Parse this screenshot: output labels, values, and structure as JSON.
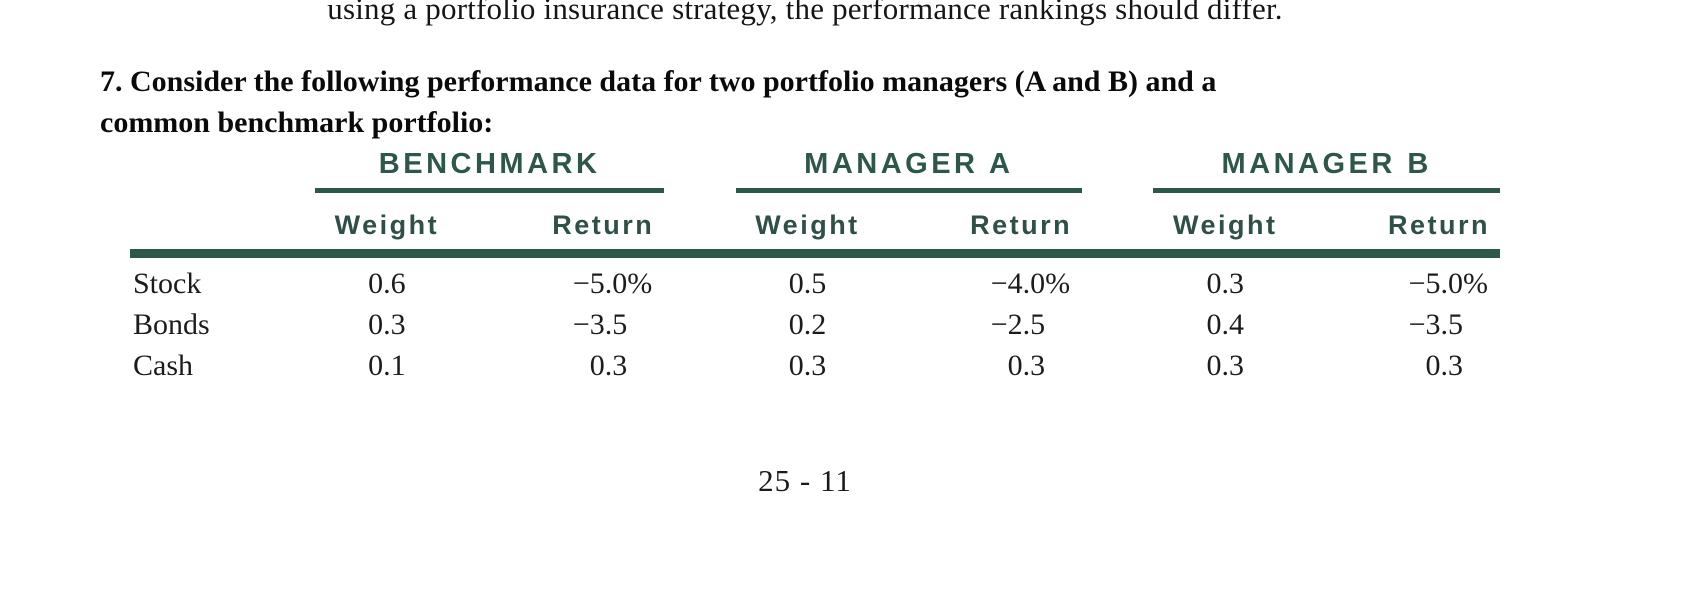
{
  "page": {
    "truncated_line": "using a portfolio insurance strategy, the performance rankings should differ.",
    "question_line1": "7. Consider the following performance data for two portfolio managers (A and B) and a",
    "question_line2": "common benchmark portfolio:",
    "page_number": "25 - 11"
  },
  "table": {
    "groups": [
      "BENCHMARK",
      "MANAGER A",
      "MANAGER B"
    ],
    "subheaders": [
      "Weight",
      "Return",
      "Weight",
      "Return",
      "Weight",
      "Return"
    ],
    "rows": [
      {
        "label": "Stock",
        "benchmark": {
          "weight": "0.6",
          "return": "−5.0",
          "pct": "%"
        },
        "manager_a": {
          "weight": "0.5",
          "return": "−4.0",
          "pct": "%"
        },
        "manager_b": {
          "weight": "0.3",
          "return": "−5.0",
          "pct": "%"
        }
      },
      {
        "label": "Bonds",
        "benchmark": {
          "weight": "0.3",
          "return": "−3.5",
          "pct": ""
        },
        "manager_a": {
          "weight": "0.2",
          "return": "−2.5",
          "pct": ""
        },
        "manager_b": {
          "weight": "0.4",
          "return": "−3.5",
          "pct": ""
        }
      },
      {
        "label": "Cash",
        "benchmark": {
          "weight": "0.1",
          "return": "0.3",
          "pct": ""
        },
        "manager_a": {
          "weight": "0.3",
          "return": "0.3",
          "pct": ""
        },
        "manager_b": {
          "weight": "0.3",
          "return": "0.3",
          "pct": ""
        }
      }
    ]
  },
  "colors": {
    "header_green": "#2d574a",
    "rule_green": "#2d574a",
    "body_text": "#1c1c1c"
  }
}
